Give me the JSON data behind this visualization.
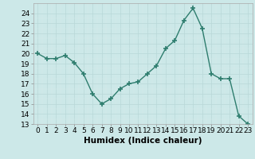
{
  "x": [
    0,
    1,
    2,
    3,
    4,
    5,
    6,
    7,
    8,
    9,
    10,
    11,
    12,
    13,
    14,
    15,
    16,
    17,
    18,
    19,
    20,
    21,
    22,
    23
  ],
  "y": [
    20.0,
    19.5,
    19.5,
    19.8,
    19.1,
    18.0,
    16.0,
    15.0,
    15.5,
    16.5,
    17.0,
    17.2,
    18.0,
    18.8,
    20.5,
    21.3,
    23.3,
    24.5,
    22.5,
    18.0,
    17.5,
    17.5,
    13.8,
    13.0
  ],
  "line_color": "#2e7d6e",
  "marker": "+",
  "marker_size": 4,
  "marker_lw": 1.2,
  "line_width": 1.0,
  "bg_color": "#cce8e8",
  "grid_major_color": "#b8d8d8",
  "grid_minor_color": "#d8ecec",
  "xlabel": "Humidex (Indice chaleur)",
  "ylim": [
    13,
    25
  ],
  "xlim": [
    -0.5,
    23.5
  ],
  "yticks": [
    13,
    14,
    15,
    16,
    17,
    18,
    19,
    20,
    21,
    22,
    23,
    24
  ],
  "xtick_labels": [
    "0",
    "1",
    "2",
    "3",
    "4",
    "5",
    "6",
    "7",
    "8",
    "9",
    "10",
    "11",
    "12",
    "13",
    "14",
    "15",
    "16",
    "17",
    "18",
    "19",
    "20",
    "21",
    "22",
    "23"
  ],
  "xlabel_fontsize": 7.5,
  "tick_fontsize": 6.5
}
